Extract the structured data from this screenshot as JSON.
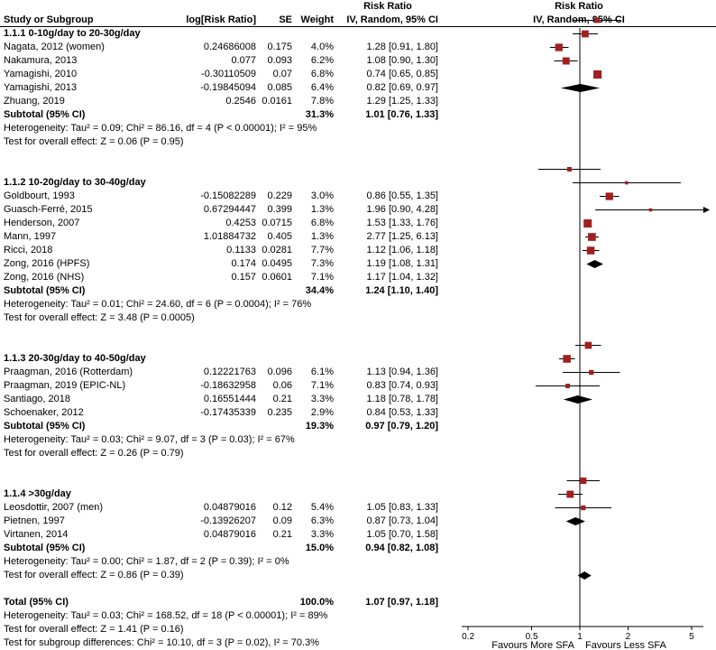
{
  "header": {
    "col_study": "Study or Subgroup",
    "col_logrr": "log[Risk Ratio]",
    "col_se": "SE",
    "col_weight": "Weight",
    "col_effect_top": "Risk Ratio",
    "col_effect_bottom": "IV, Random, 95% CI",
    "col_plot_top": "Risk Ratio",
    "col_plot_bottom": "IV, Random, 95% CI"
  },
  "axis": {
    "scale": "log",
    "ticks": [
      0.2,
      0.5,
      1,
      2,
      5
    ],
    "favours_left": "Favours More SFA",
    "favours_right": "Favours Less SFA"
  },
  "colors": {
    "marker": "#a02020",
    "diamond": "#000000",
    "line": "#000000",
    "text": "#000000"
  },
  "chart_data": {
    "type": "forest",
    "effect_measure": "Risk Ratio",
    "model": "IV, Random, 95% CI",
    "groups": [
      {
        "label": "1.1.1 0-10g/day to 20-30g/day",
        "studies": [
          {
            "name": "Nagata, 2012 (women)",
            "log_rr": "0.24686008",
            "se": "0.175",
            "weight": "4.0%",
            "weight_value": 4.0,
            "ci_text": "1.28 [0.91, 1.80]",
            "rr": 1.28,
            "lo": 0.91,
            "hi": 1.8
          },
          {
            "name": "Nakamura, 2013",
            "log_rr": "0.077",
            "se": "0.093",
            "weight": "6.2%",
            "weight_value": 6.2,
            "ci_text": "1.08 [0.90, 1.30]",
            "rr": 1.08,
            "lo": 0.9,
            "hi": 1.3
          },
          {
            "name": "Yamagishi, 2010",
            "log_rr": "-0.30110509",
            "se": "0.07",
            "weight": "6.8%",
            "weight_value": 6.8,
            "ci_text": "0.74 [0.65, 0.85]",
            "rr": 0.74,
            "lo": 0.65,
            "hi": 0.85
          },
          {
            "name": "Yamagishi, 2013",
            "log_rr": "-0.19845094",
            "se": "0.085",
            "weight": "6.4%",
            "weight_value": 6.4,
            "ci_text": "0.82 [0.69, 0.97]",
            "rr": 0.82,
            "lo": 0.69,
            "hi": 0.97
          },
          {
            "name": "Zhuang, 2019",
            "log_rr": "0.2546",
            "se": "0.0161",
            "weight": "7.8%",
            "weight_value": 7.8,
            "ci_text": "1.29 [1.25, 1.33]",
            "rr": 1.29,
            "lo": 1.25,
            "hi": 1.33
          }
        ],
        "subtotal": {
          "label": "Subtotal (95% CI)",
          "weight": "31.3%",
          "ci_text": "1.01 [0.76, 1.33]",
          "rr": 1.01,
          "lo": 0.76,
          "hi": 1.33
        },
        "heterogeneity": "Heterogeneity: Tau² = 0.09; Chi² = 86.16, df = 4 (P < 0.00001); I² = 95%",
        "test": "Test for overall effect: Z = 0.06 (P = 0.95)"
      },
      {
        "label": "1.1.2 10-20g/day to 30-40g/day",
        "studies": [
          {
            "name": "Goldbourt, 1993",
            "log_rr": "-0.15082289",
            "se": "0.229",
            "weight": "3.0%",
            "weight_value": 3.0,
            "ci_text": "0.86 [0.55, 1.35]",
            "rr": 0.86,
            "lo": 0.55,
            "hi": 1.35
          },
          {
            "name": "Guasch-Ferré, 2015",
            "log_rr": "0.67294447",
            "se": "0.399",
            "weight": "1.3%",
            "weight_value": 1.3,
            "ci_text": "1.96 [0.90, 4.28]",
            "rr": 1.96,
            "lo": 0.9,
            "hi": 4.28
          },
          {
            "name": "Henderson, 2007",
            "log_rr": "0.4253",
            "se": "0.0715",
            "weight": "6.8%",
            "weight_value": 6.8,
            "ci_text": "1.53 [1.33, 1.76]",
            "rr": 1.53,
            "lo": 1.33,
            "hi": 1.76
          },
          {
            "name": "Mann, 1997",
            "log_rr": "1.01884732",
            "se": "0.405",
            "weight": "1.3%",
            "weight_value": 1.3,
            "ci_text": "2.77 [1.25, 6.13]",
            "rr": 2.77,
            "lo": 1.25,
            "hi": 6.13
          },
          {
            "name": "Ricci, 2018",
            "log_rr": "0.1133",
            "se": "0.0281",
            "weight": "7.7%",
            "weight_value": 7.7,
            "ci_text": "1.12 [1.06, 1.18]",
            "rr": 1.12,
            "lo": 1.06,
            "hi": 1.18
          },
          {
            "name": "Zong, 2016 (HPFS)",
            "log_rr": "0.174",
            "se": "0.0495",
            "weight": "7.3%",
            "weight_value": 7.3,
            "ci_text": "1.19 [1.08, 1.31]",
            "rr": 1.19,
            "lo": 1.08,
            "hi": 1.31
          },
          {
            "name": "Zong, 2016 (NHS)",
            "log_rr": "0.157",
            "se": "0.0601",
            "weight": "7.1%",
            "weight_value": 7.1,
            "ci_text": "1.17 [1.04, 1.32]",
            "rr": 1.17,
            "lo": 1.04,
            "hi": 1.32
          }
        ],
        "subtotal": {
          "label": "Subtotal (95% CI)",
          "weight": "34.4%",
          "ci_text": "1.24 [1.10, 1.40]",
          "rr": 1.24,
          "lo": 1.1,
          "hi": 1.4
        },
        "heterogeneity": "Heterogeneity: Tau² = 0.01; Chi² = 24.60, df = 6 (P = 0.0004); I² = 76%",
        "test": "Test for overall effect: Z = 3.48 (P = 0.0005)"
      },
      {
        "label": "1.1.3 20-30g/day to 40-50g/day",
        "studies": [
          {
            "name": "Praagman, 2016 (Rotterdam)",
            "log_rr": "0.12221763",
            "se": "0.096",
            "weight": "6.1%",
            "weight_value": 6.1,
            "ci_text": "1.13 [0.94, 1.36]",
            "rr": 1.13,
            "lo": 0.94,
            "hi": 1.36
          },
          {
            "name": "Praagman, 2019 (EPIC-NL)",
            "log_rr": "-0.18632958",
            "se": "0.06",
            "weight": "7.1%",
            "weight_value": 7.1,
            "ci_text": "0.83 [0.74, 0.93]",
            "rr": 0.83,
            "lo": 0.74,
            "hi": 0.93
          },
          {
            "name": "Santiago, 2018",
            "log_rr": "0.16551444",
            "se": "0.21",
            "weight": "3.3%",
            "weight_value": 3.3,
            "ci_text": "1.18 [0.78, 1.78]",
            "rr": 1.18,
            "lo": 0.78,
            "hi": 1.78
          },
          {
            "name": "Schoenaker, 2012",
            "log_rr": "-0.17435339",
            "se": "0.235",
            "weight": "2.9%",
            "weight_value": 2.9,
            "ci_text": "0.84 [0.53, 1.33]",
            "rr": 0.84,
            "lo": 0.53,
            "hi": 1.33
          }
        ],
        "subtotal": {
          "label": "Subtotal (95% CI)",
          "weight": "19.3%",
          "ci_text": "0.97 [0.79, 1.20]",
          "rr": 0.97,
          "lo": 0.79,
          "hi": 1.2
        },
        "heterogeneity": "Heterogeneity: Tau² = 0.03; Chi² = 9.07, df = 3 (P = 0.03); I² = 67%",
        "test": "Test for overall effect: Z = 0.26 (P = 0.79)"
      },
      {
        "label": "1.1.4 >30g/day",
        "studies": [
          {
            "name": "Leosdottir, 2007 (men)",
            "log_rr": "0.04879016",
            "se": "0.12",
            "weight": "5.4%",
            "weight_value": 5.4,
            "ci_text": "1.05 [0.83, 1.33]",
            "rr": 1.05,
            "lo": 0.83,
            "hi": 1.33
          },
          {
            "name": "Pietnen, 1997",
            "log_rr": "-0.13926207",
            "se": "0.09",
            "weight": "6.3%",
            "weight_value": 6.3,
            "ci_text": "0.87 [0.73, 1.04]",
            "rr": 0.87,
            "lo": 0.73,
            "hi": 1.04
          },
          {
            "name": "Virtanen, 2014",
            "log_rr": "0.04879016",
            "se": "0.21",
            "weight": "3.3%",
            "weight_value": 3.3,
            "ci_text": "1.05 [0.70, 1.58]",
            "rr": 1.05,
            "lo": 0.7,
            "hi": 1.58
          }
        ],
        "subtotal": {
          "label": "Subtotal (95% CI)",
          "weight": "15.0%",
          "ci_text": "0.94 [0.82, 1.08]",
          "rr": 0.94,
          "lo": 0.82,
          "hi": 1.08
        },
        "heterogeneity": "Heterogeneity: Tau² = 0.00; Chi² = 1.87, df = 2 (P = 0.39); I² = 0%",
        "test": "Test for overall effect: Z = 0.86 (P = 0.39)"
      }
    ],
    "total": {
      "label": "Total (95% CI)",
      "weight": "100.0%",
      "ci_text": "1.07 [0.97, 1.18]",
      "rr": 1.07,
      "lo": 0.97,
      "hi": 1.18
    },
    "total_heterogeneity": "Heterogeneity: Tau² = 0.03; Chi² = 168.52, df = 18 (P < 0.00001); I² = 89%",
    "total_test": "Test for overall effect: Z = 1.41 (P = 0.16)",
    "subgroup_test": "Test for subgroup differences: Chi² = 10.10, df = 3 (P = 0.02), I² = 70.3%"
  }
}
